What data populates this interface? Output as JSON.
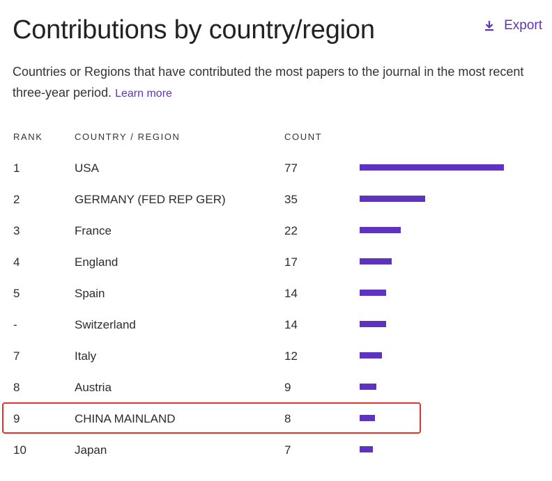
{
  "header": {
    "title": "Contributions by country/region",
    "export_label": "Export",
    "description": "Countries or Regions that have contributed the most papers to the journal in the most recent three-year period.",
    "learn_more": "Learn more"
  },
  "table": {
    "columns": {
      "rank": "RANK",
      "country": "COUNTRY / REGION",
      "count": "COUNT"
    },
    "max_count": 77,
    "rows": [
      {
        "rank": "1",
        "country": "USA",
        "count": "77",
        "value": 77
      },
      {
        "rank": "2",
        "country": "GERMANY (FED REP GER)",
        "count": "35",
        "value": 35
      },
      {
        "rank": "3",
        "country": "France",
        "count": "22",
        "value": 22
      },
      {
        "rank": "4",
        "country": "England",
        "count": "17",
        "value": 17
      },
      {
        "rank": "5",
        "country": "Spain",
        "count": "14",
        "value": 14
      },
      {
        "rank": "-",
        "country": "Switzerland",
        "count": "14",
        "value": 14
      },
      {
        "rank": "7",
        "country": "Italy",
        "count": "12",
        "value": 12
      },
      {
        "rank": "8",
        "country": "Austria",
        "count": "9",
        "value": 9
      },
      {
        "rank": "9",
        "country": "CHINA MAINLAND",
        "count": "8",
        "value": 8,
        "highlighted": true
      },
      {
        "rank": "10",
        "country": "Japan",
        "count": "7",
        "value": 7
      }
    ]
  },
  "colors": {
    "accent": "#5e33bf",
    "highlight_border": "#e8302a"
  }
}
